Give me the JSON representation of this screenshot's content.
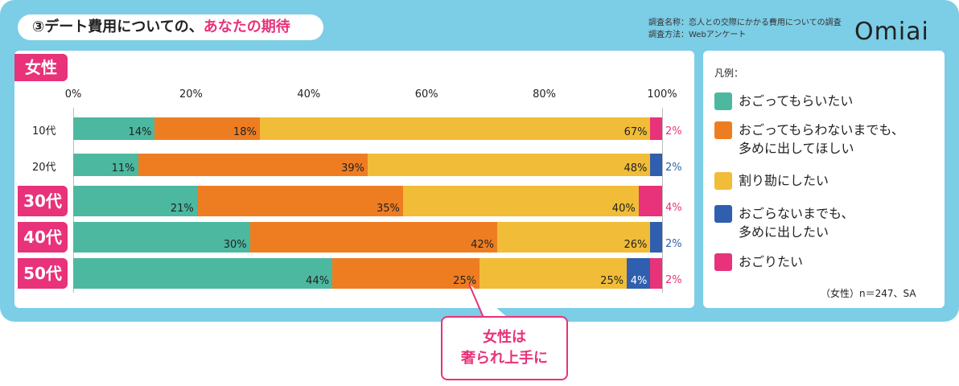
{
  "header": {
    "title_prefix": "③デート費用についての、",
    "title_accent": "あなたの期待",
    "survey_name": "調査名称：恋人との交際にかかる費用についての調査",
    "survey_method": "調査方法：Webアンケート",
    "logo": "Omiai"
  },
  "gender_tag": "女性",
  "chart_data": {
    "type": "bar",
    "orientation": "horizontal",
    "stacked": true,
    "categories": [
      "10代",
      "20代",
      "30代",
      "40代",
      "50代"
    ],
    "x_ticks": [
      "0%",
      "20%",
      "40%",
      "60%",
      "80%",
      "100%"
    ],
    "xlim": [
      0,
      100
    ],
    "series": [
      {
        "name": "おごってもらいたい",
        "color": "#4cb8a0",
        "values": [
          14,
          11,
          21,
          30,
          44
        ]
      },
      {
        "name": "おごってもらわないまでも、多めに出してほしい",
        "color": "#ee7d22",
        "values": [
          18,
          39,
          35,
          42,
          25
        ]
      },
      {
        "name": "割り勘にしたい",
        "color": "#f1bc37",
        "values": [
          67,
          48,
          40,
          26,
          25
        ]
      },
      {
        "name": "おごらないまでも、多めに出したい",
        "color": "#2f5fae",
        "values": [
          0,
          2,
          0,
          2,
          4
        ]
      },
      {
        "name": "おごりたい",
        "color": "#e8327a",
        "values": [
          2,
          0,
          4,
          0,
          2
        ]
      }
    ],
    "value_labels": [
      [
        "14%",
        "18%",
        "67%",
        "",
        "2%"
      ],
      [
        "11%",
        "39%",
        "48%",
        "2%",
        ""
      ],
      [
        "21%",
        "35%",
        "40%",
        "",
        "4%"
      ],
      [
        "30%",
        "42%",
        "26%",
        "2%",
        ""
      ],
      [
        "44%",
        "25%",
        "25%",
        "4%",
        "2%"
      ]
    ],
    "legend_position": "right"
  },
  "legend": {
    "title": "凡例：",
    "items": [
      {
        "label": "おごってもらいたい",
        "color": "#4cb8a0"
      },
      {
        "label": "おごってもらわないまでも、\n多めに出してほしい",
        "color": "#ee7d22"
      },
      {
        "label": "割り勘にしたい",
        "color": "#f1bc37"
      },
      {
        "label": "おごらないまでも、\n多めに出したい",
        "color": "#2f5fae"
      },
      {
        "label": "おごりたい",
        "color": "#e8327a"
      }
    ]
  },
  "note": "（女性）n＝247、SA",
  "callout": "女性は\n奢られ上手に"
}
